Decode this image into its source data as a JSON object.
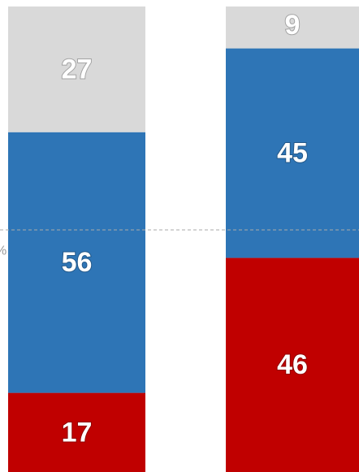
{
  "chart_data": {
    "type": "stacked_bar",
    "categories": [
      null,
      null
    ],
    "series": [
      {
        "color": "#c00000",
        "values": [
          17,
          46
        ]
      },
      {
        "color": "#2e75b6",
        "values": [
          56,
          45
        ]
      },
      {
        "color": "#d9d9d9",
        "values": [
          27,
          9
        ]
      }
    ],
    "ylim": [
      0,
      100
    ],
    "reference_line": {
      "value": 52,
      "label": "%"
    }
  }
}
